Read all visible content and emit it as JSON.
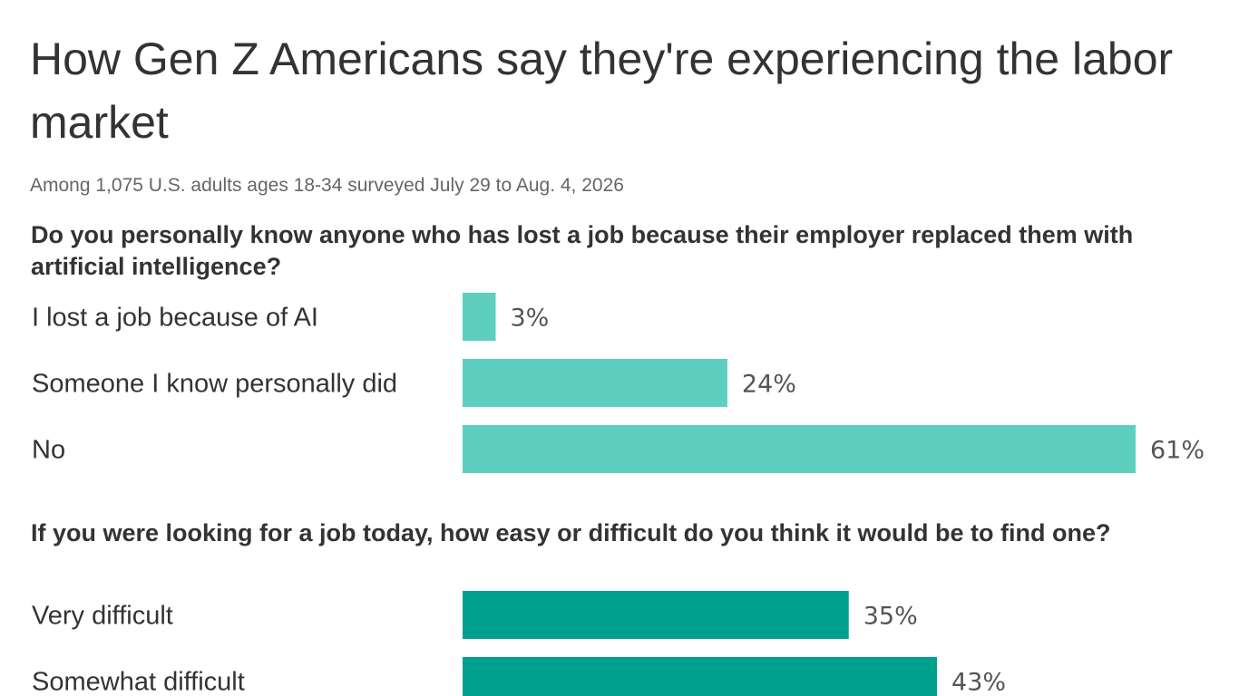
{
  "title": "How Gen Z Americans say they're experiencing the labor market",
  "subtitle": "Among 1,075 U.S. adults ages 18-34 surveyed July 29 to Aug. 4, 2026",
  "colors": {
    "section1": "#5ecfbf",
    "section2": "#00a08e"
  },
  "chart_data": [
    {
      "type": "bar",
      "orientation": "horizontal",
      "question": "Do you personally know anyone who has lost a job because their employer replaced them with artificial intelligence?",
      "categories": [
        "I lost a job because of AI",
        "Someone I know personally did",
        "No"
      ],
      "values": [
        3,
        24,
        61
      ],
      "value_labels": [
        "3%",
        "24%",
        "61%"
      ],
      "unit": "%",
      "xlim": [
        0,
        61
      ]
    },
    {
      "type": "bar",
      "orientation": "horizontal",
      "question": "If you were looking for a job today, how easy or difficult do you think it would be to find one?",
      "categories": [
        "Very difficult",
        "Somewhat difficult"
      ],
      "values": [
        35,
        43
      ],
      "value_labels": [
        "35%",
        "43%"
      ],
      "unit": "%",
      "xlim": [
        0,
        61
      ]
    }
  ]
}
